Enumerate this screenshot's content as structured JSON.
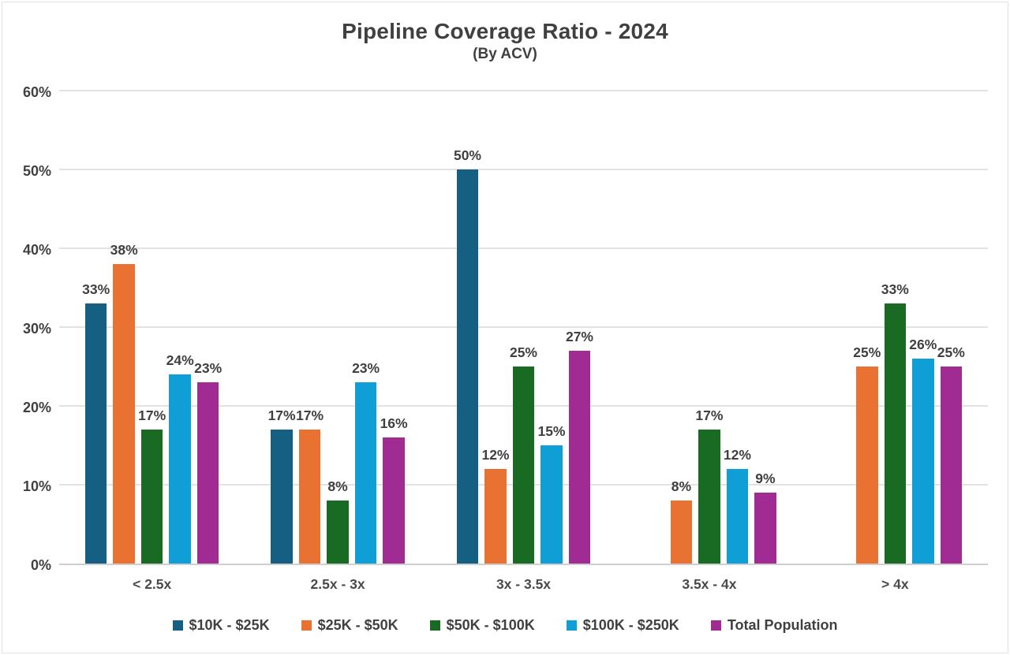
{
  "header": {
    "title": "Pipeline Coverage Ratio - 2024",
    "subtitle": "(By ACV)"
  },
  "colors": {
    "text": "#404040",
    "gridline": "#E2E2E2",
    "axis_line": "#CFCFCF",
    "background": "#FFFFFF"
  },
  "chart_data": {
    "type": "bar",
    "title": "Pipeline Coverage Ratio - 2024",
    "subtitle": "(By ACV)",
    "categories": [
      "< 2.5x",
      "2.5x - 3x",
      "3x - 3.5x",
      "3.5x - 4x",
      "> 4x"
    ],
    "series": [
      {
        "name": "$10K - $25K",
        "color": "#156082",
        "values": [
          33,
          17,
          50,
          0,
          0
        ]
      },
      {
        "name": "$25K - $50K",
        "color": "#E97132",
        "values": [
          38,
          17,
          12,
          8,
          25
        ]
      },
      {
        "name": "$50K - $100K",
        "color": "#196B24",
        "values": [
          17,
          8,
          25,
          17,
          33
        ]
      },
      {
        "name": "$100K - $250K",
        "color": "#0F9ED5",
        "values": [
          24,
          23,
          15,
          12,
          26
        ]
      },
      {
        "name": "Total Population",
        "color": "#A02B93",
        "values": [
          23,
          16,
          27,
          9,
          25
        ]
      }
    ],
    "data_labels": true,
    "value_suffix": "%",
    "y_ticks": [
      "0%",
      "10%",
      "20%",
      "30%",
      "40%",
      "50%",
      "60%"
    ],
    "ylim": [
      0,
      60
    ],
    "grid": true,
    "legend_position": "bottom",
    "hide_zero_bars": true
  }
}
